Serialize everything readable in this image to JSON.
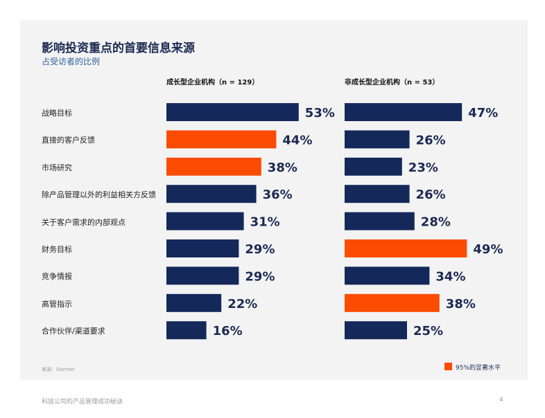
{
  "colors": {
    "panel": "#f3f3f3",
    "navy": "#14295a",
    "orange": "#fc4c02",
    "title": "#1b2a52",
    "subtitle": "#2f5f9e"
  },
  "chart_data": {
    "type": "bar",
    "orientation": "horizontal",
    "title": "影响投资重点的首要信息来源",
    "subtitle": "占受访者的比例",
    "categories": [
      "战略目标",
      "直接的客户反馈",
      "市场研究",
      "除产品管理以外的利益相关方反馈",
      "关于客户需求的内部观点",
      "财务目标",
      "竞争情报",
      "高管指示",
      "合作伙伴/渠道要求"
    ],
    "series": [
      {
        "name": "成长型企业机构（n = 129）",
        "values": [
          53,
          44,
          38,
          36,
          31,
          29,
          29,
          22,
          16
        ],
        "labels": [
          "53%",
          "44%",
          "38%",
          "36%",
          "31%",
          "29%",
          "29%",
          "22%",
          "16%"
        ],
        "significant": [
          false,
          true,
          true,
          false,
          false,
          false,
          false,
          false,
          false
        ]
      },
      {
        "name": "非成长型企业机构（n = 53）",
        "values": [
          47,
          26,
          23,
          26,
          28,
          49,
          34,
          38,
          25
        ],
        "labels": [
          "47%",
          "26%",
          "23%",
          "26%",
          "28%",
          "49%",
          "34%",
          "38%",
          "25%"
        ],
        "significant": [
          false,
          false,
          false,
          false,
          false,
          true,
          false,
          true,
          false
        ]
      }
    ],
    "unit": "%",
    "legend": "95%的显著水平",
    "legend_position": "bottom-right"
  },
  "source": "来源：Gartner",
  "footer": {
    "text": "科技公司的产品管理成功秘诀",
    "page": "4"
  }
}
